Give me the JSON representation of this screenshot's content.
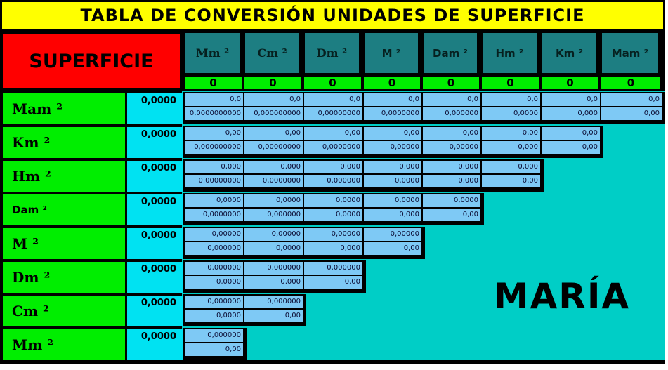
{
  "title": "TABLA DE CONVERSIÓN UNIDADES DE SUPERFICIE",
  "superficie_label": "SUPERFICIE",
  "watermark": "MARÍA",
  "colors": {
    "title_bg": "#ffff00",
    "superficie_bg": "#ff0000",
    "header_bg": "#1d7e82",
    "zeros_bg": "#00ee00",
    "label_bg": "#00ee00",
    "input_bg": "#00e2f2",
    "value_bg": "#7ec9f5",
    "field_bg": "#00cec6",
    "grid": "#000000"
  },
  "columns": [
    {
      "label": "Mm ²",
      "serif": true,
      "zero": "0"
    },
    {
      "label": "Cm ²",
      "serif": true,
      "zero": "0"
    },
    {
      "label": "Dm ²",
      "serif": true,
      "zero": "0"
    },
    {
      "label": "M ²",
      "serif": false,
      "zero": "0"
    },
    {
      "label": "Dam ²",
      "serif": false,
      "zero": "0"
    },
    {
      "label": "Hm ²",
      "serif": false,
      "zero": "0"
    },
    {
      "label": "Km ²",
      "serif": false,
      "zero": "0"
    },
    {
      "label": "Mam ²",
      "serif": false,
      "zero": "0"
    }
  ],
  "rows": [
    {
      "label": "Mam ²",
      "serif": true,
      "input": "0,0000",
      "top": [
        "0,0",
        "0,0",
        "0,0",
        "0,0",
        "0,0",
        "0,0",
        "0,0",
        "0,0"
      ],
      "bottom": [
        "0,0000000000",
        "0,000000000",
        "0,00000000",
        "0,0000000",
        "0,000000",
        "0,0000",
        "0,000",
        "0,00"
      ]
    },
    {
      "label": "Km ²",
      "serif": true,
      "input": "0,0000",
      "top": [
        "0,00",
        "0,00",
        "0,00",
        "0,00",
        "0,00",
        "0,00",
        "0,00"
      ],
      "bottom": [
        "0,000000000",
        "0,00000000",
        "0,0000000",
        "0,00000",
        "0,00000",
        "0,000",
        "0,00"
      ]
    },
    {
      "label": "Hm ²",
      "serif": true,
      "input": "0,0000",
      "top": [
        "0,000",
        "0,000",
        "0,000",
        "0,000",
        "0,000",
        "0,000"
      ],
      "bottom": [
        "0,00000000",
        "0,0000000",
        "0,000000",
        "0,0000",
        "0,000",
        "0,00"
      ]
    },
    {
      "label": "Dam ²",
      "serif": false,
      "input": "0,0000",
      "top": [
        "0,0000",
        "0,0000",
        "0,0000",
        "0,0000",
        "0,0000"
      ],
      "bottom": [
        "0,0000000",
        "0,000000",
        "0,0000",
        "0,000",
        "0,00"
      ]
    },
    {
      "label": "M ²",
      "serif": true,
      "input": "0,0000",
      "top": [
        "0,00000",
        "0,00000",
        "0,00000",
        "0,00000"
      ],
      "bottom": [
        "0,000000",
        "0,0000",
        "0,000",
        "0,00"
      ]
    },
    {
      "label": "Dm ²",
      "serif": true,
      "input": "0,0000",
      "top": [
        "0,000000",
        "0,000000",
        "0,000000"
      ],
      "bottom": [
        "0,0000",
        "0,000",
        "0,00"
      ]
    },
    {
      "label": "Cm ²",
      "serif": true,
      "input": "0,0000",
      "top": [
        "0,000000",
        "0,000000"
      ],
      "bottom": [
        "0,0000",
        "0,00"
      ]
    },
    {
      "label": "Mm ²",
      "serif": true,
      "input": "0,0000",
      "top": [
        "0,000000"
      ],
      "bottom": [
        "0,00"
      ]
    }
  ]
}
